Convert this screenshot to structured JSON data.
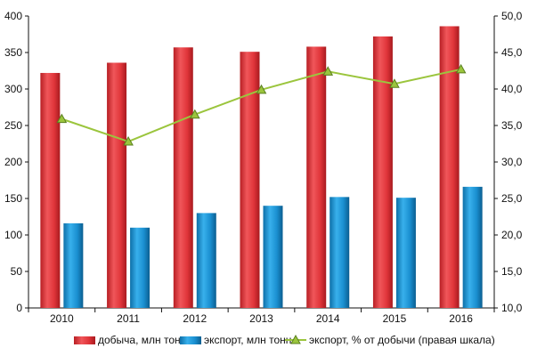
{
  "chart_data": {
    "type": "bar",
    "categories": [
      "2010",
      "2011",
      "2012",
      "2013",
      "2014",
      "2015",
      "2016"
    ],
    "series": [
      {
        "name": "добыча, млн тонн",
        "type": "bar",
        "axis": "left",
        "color": "#e0353a",
        "values": [
          322,
          336,
          357,
          351,
          358,
          372,
          386
        ]
      },
      {
        "name": "экспорт, млн тонн",
        "type": "bar",
        "axis": "left",
        "color": "#1a8fd0",
        "values": [
          116,
          110,
          130,
          140,
          152,
          151,
          166
        ]
      },
      {
        "name": "экспорт, % от добычи (правая шкала)",
        "type": "line",
        "axis": "right",
        "color": "#9bc53d",
        "marker": "triangle",
        "values": [
          35.9,
          32.8,
          36.5,
          39.9,
          42.4,
          40.7,
          42.7
        ]
      }
    ],
    "y_left": {
      "ylim": [
        0,
        400
      ],
      "ticks": [
        "0",
        "50",
        "100",
        "150",
        "200",
        "250",
        "300",
        "350",
        "400"
      ]
    },
    "y_right": {
      "ylim": [
        10,
        50
      ],
      "ticks": [
        "10,0",
        "15,0",
        "20,0",
        "25,0",
        "30,0",
        "35,0",
        "40,0",
        "45,0",
        "50,0"
      ]
    },
    "grid": false,
    "legend": "bottom",
    "title": "",
    "xlabel": "",
    "ylabel": ""
  }
}
